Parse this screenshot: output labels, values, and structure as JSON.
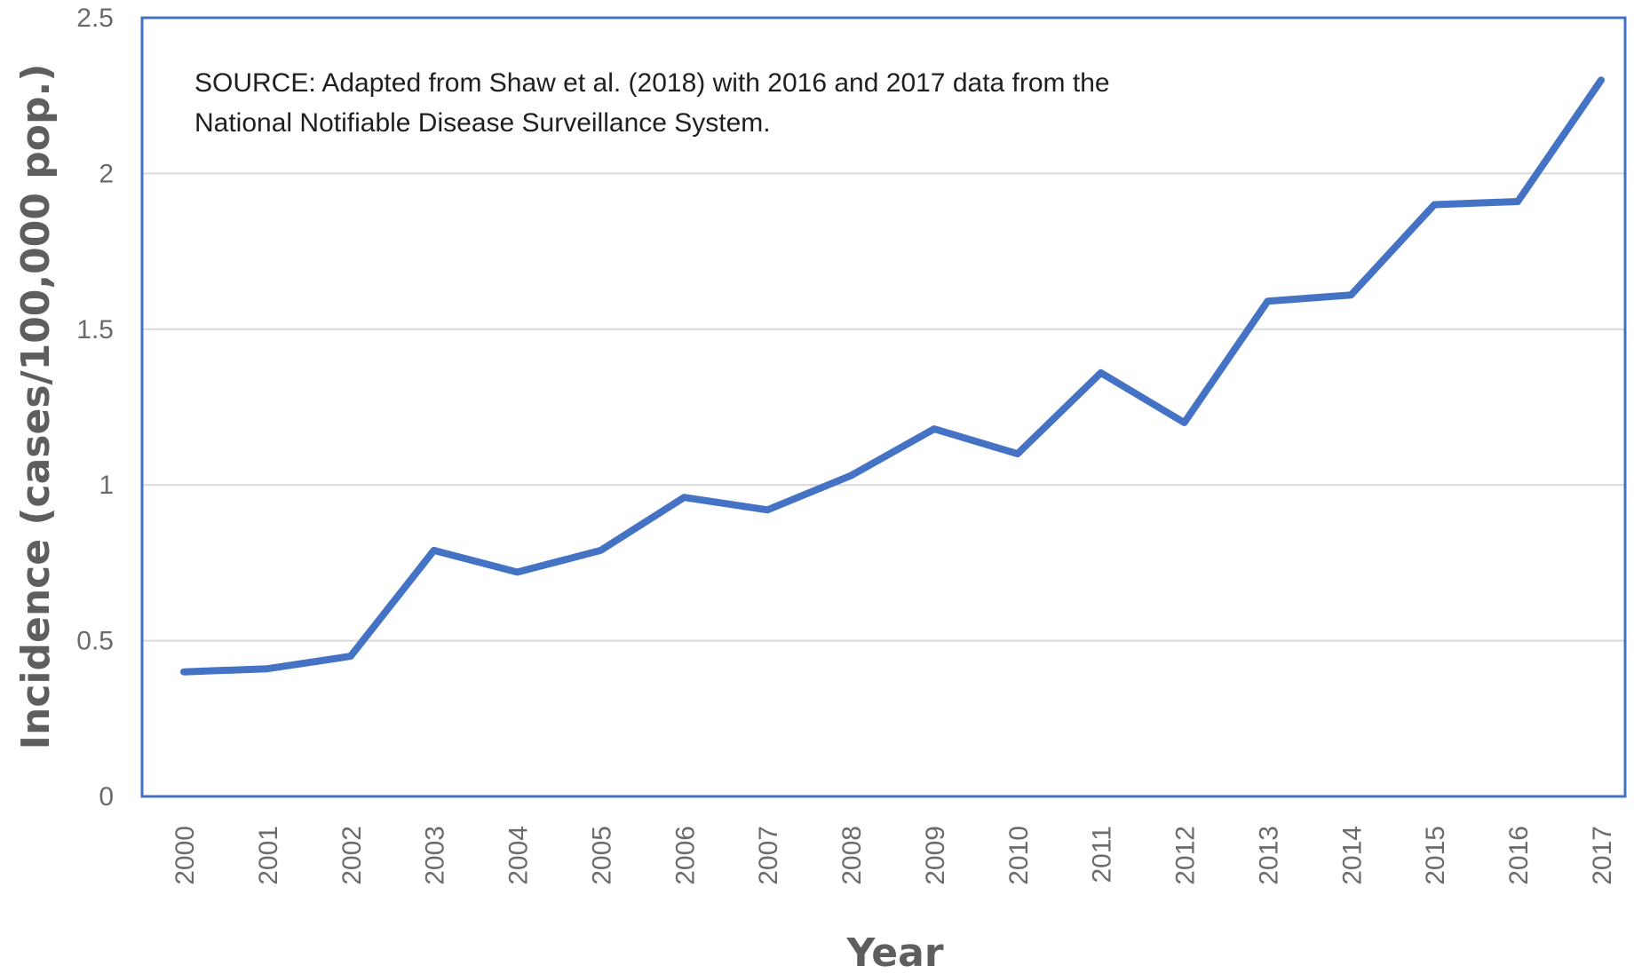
{
  "chart_data": {
    "type": "line",
    "title": "",
    "xlabel": "Year",
    "ylabel": "Incidence (cases/100,000 pop.)",
    "ylim": [
      0,
      2.5
    ],
    "yticks": [
      "0",
      "0.5",
      "1",
      "1.5",
      "2",
      "2.5"
    ],
    "ytick_values": [
      0,
      0.5,
      1,
      1.5,
      2,
      2.5
    ],
    "categories": [
      "2000",
      "2001",
      "2002",
      "2003",
      "2004",
      "2005",
      "2006",
      "2007",
      "2008",
      "2009",
      "2010",
      "2011",
      "2012",
      "2013",
      "2014",
      "2015",
      "2016",
      "2017"
    ],
    "series": [
      {
        "values": [
          0.4,
          0.41,
          0.45,
          0.79,
          0.72,
          0.79,
          0.96,
          0.92,
          1.03,
          1.18,
          1.1,
          1.36,
          1.2,
          1.59,
          1.61,
          1.9,
          1.91,
          2.3
        ],
        "color": "#4472C4"
      }
    ],
    "annotation": [
      "SOURCE: Adapted from Shaw et al. (2018) with 2016 and 2017 data from the",
      "National Notifiable Disease Surveillance System."
    ],
    "grid": true,
    "legend": "none",
    "frame_color": "#4472C4"
  }
}
